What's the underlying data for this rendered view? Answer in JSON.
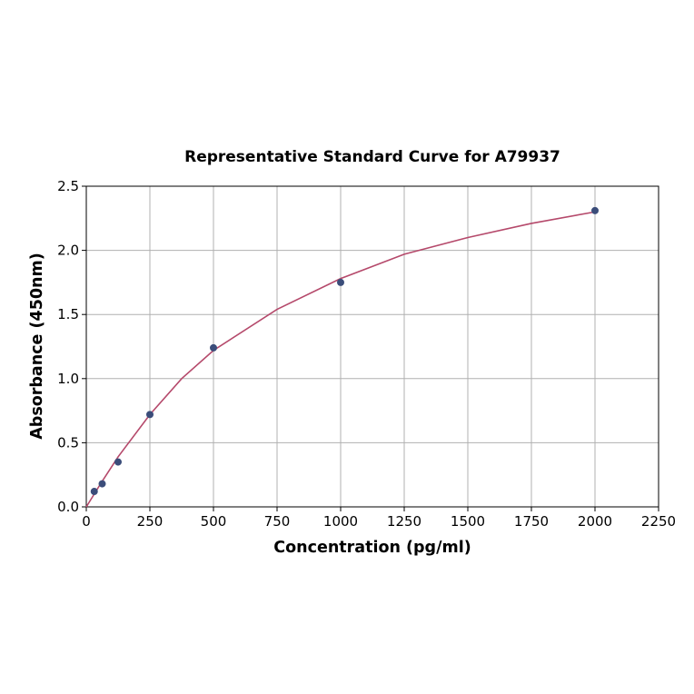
{
  "chart_data": {
    "type": "scatter",
    "title": "Representative Standard Curve for A79937",
    "x_label": "Concentration (pg/ml)",
    "y_label": "Absorbance (450nm)",
    "xlim": [
      0,
      2250
    ],
    "ylim": [
      0,
      2.5
    ],
    "xticks": [
      0,
      250,
      500,
      750,
      1000,
      1250,
      1500,
      1750,
      2000,
      2250
    ],
    "yticks": [
      {
        "value": 0,
        "label": "0.0"
      },
      0.5,
      {
        "value": 1,
        "label": "1.0"
      },
      1.5,
      {
        "value": 2,
        "label": "2.0"
      },
      2.5
    ],
    "grid": true,
    "series": [
      {
        "type": "line",
        "color": "#b5496b",
        "x": [
          0,
          62.5,
          125,
          250,
          375,
          500,
          750,
          1000,
          1250,
          1500,
          1750,
          2000
        ],
        "values": [
          0,
          0.2,
          0.39,
          0.72,
          1.0,
          1.22,
          1.54,
          1.78,
          1.97,
          2.1,
          2.21,
          2.3
        ]
      },
      {
        "type": "scatter",
        "color": "#3b4d7a",
        "x": [
          31.25,
          62.5,
          125,
          250,
          500,
          1000,
          2000
        ],
        "values": [
          0.12,
          0.18,
          0.35,
          0.72,
          1.24,
          1.75,
          2.31
        ]
      }
    ]
  }
}
